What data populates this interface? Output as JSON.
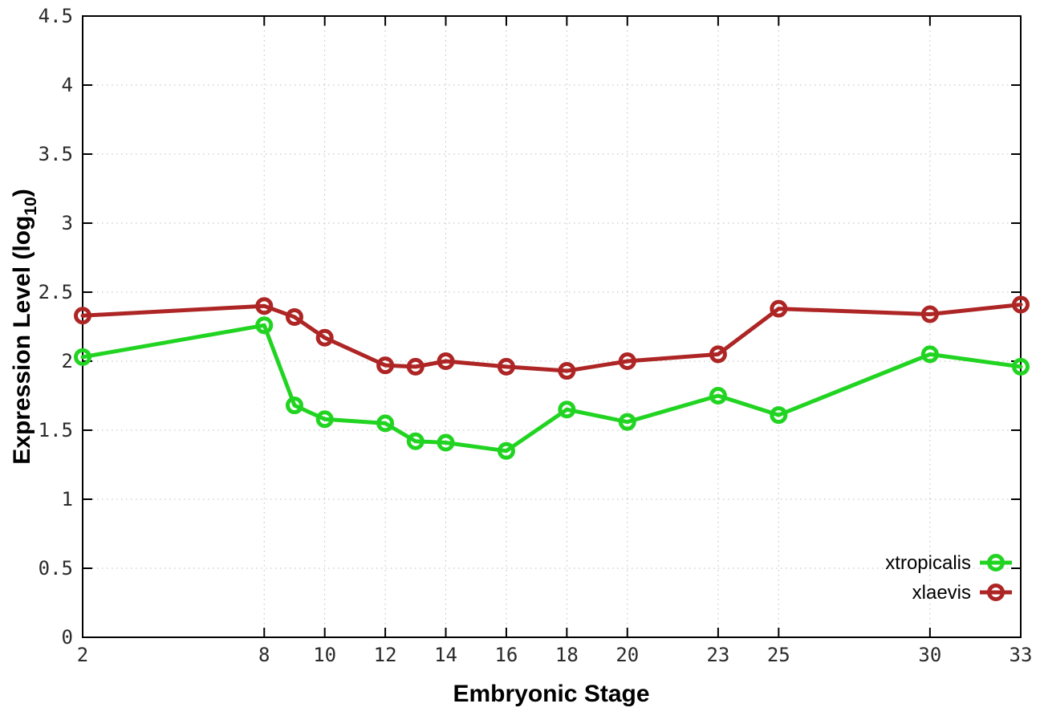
{
  "figure": {
    "background": "#ffffff"
  },
  "chart_data": {
    "type": "line",
    "title": "",
    "xlabel": "Embryonic Stage",
    "ylabel": "Expression Level (log10)",
    "ylabel_parts": {
      "prefix": "Expression Level (log",
      "sub": "10",
      "suffix": ")"
    },
    "x": [
      2,
      8,
      9,
      10,
      12,
      13,
      14,
      16,
      18,
      20,
      23,
      25,
      30,
      33
    ],
    "series": [
      {
        "name": "xtropicalis",
        "color": "#22d422",
        "marker": "open-circle",
        "values": [
          2.03,
          2.26,
          1.68,
          1.58,
          1.55,
          1.42,
          1.41,
          1.35,
          1.65,
          1.56,
          1.75,
          1.61,
          2.05,
          1.96
        ]
      },
      {
        "name": "xlaevis",
        "color": "#ae2525",
        "marker": "open-circle",
        "values": [
          2.33,
          2.4,
          2.32,
          2.17,
          1.97,
          1.96,
          2.0,
          1.96,
          1.93,
          2.0,
          2.05,
          2.38,
          2.34,
          2.41
        ]
      }
    ],
    "xlim": [
      2,
      33
    ],
    "ylim": [
      0,
      4.5
    ],
    "xtick_values": [
      2,
      8,
      10,
      12,
      14,
      16,
      18,
      20,
      23,
      25,
      30,
      33
    ],
    "xtick_labels": [
      "2",
      "8",
      "10",
      "12",
      "14",
      "16",
      "18",
      "20",
      "23",
      "25",
      "30",
      "33"
    ],
    "ytick_values": [
      0,
      0.5,
      1,
      1.5,
      2,
      2.5,
      3,
      3.5,
      4,
      4.5
    ],
    "ytick_labels": [
      "0",
      "0.5",
      "1",
      "1.5",
      "2",
      "2.5",
      "3",
      "3.5",
      "4",
      "4.5"
    ],
    "grid": "dotted",
    "legend_position": "bottom-right",
    "axis_color": "#000000",
    "grid_color": "#bdbdbd"
  }
}
